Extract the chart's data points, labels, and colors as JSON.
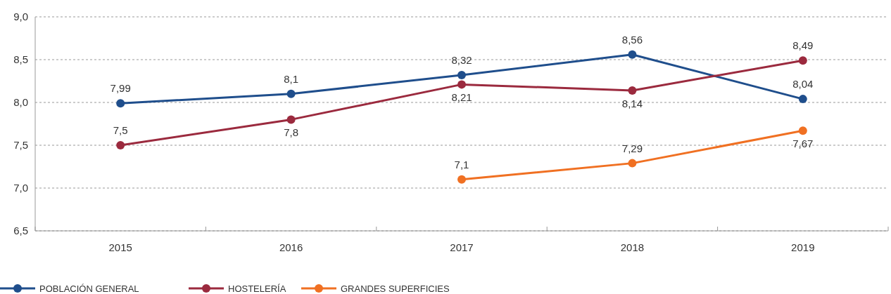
{
  "chart_data": {
    "type": "line",
    "categories": [
      "2015",
      "2016",
      "2017",
      "2018",
      "2019"
    ],
    "ylim": [
      6.5,
      9
    ],
    "yticks": [
      {
        "value": 6.5,
        "label": "6,5"
      },
      {
        "value": 7,
        "label": "7,0"
      },
      {
        "value": 7.5,
        "label": "7,5"
      },
      {
        "value": 8,
        "label": "8,0"
      },
      {
        "value": 8.5,
        "label": "8,5"
      },
      {
        "value": 9,
        "label": "9,0"
      }
    ],
    "grid": "y",
    "legend": "bottom",
    "marker": "circle",
    "line_style": "solid",
    "series": [
      {
        "name": "POBLACIÓN GENERAL",
        "color": "#1f4e8c",
        "values": [
          7.99,
          8.1,
          8.32,
          8.56,
          8.04
        ],
        "value_labels": [
          "7,99",
          "8,1",
          "8,32",
          "8,56",
          "8,04"
        ]
      },
      {
        "name": "HOSTELERÍA",
        "color": "#9b2a3e",
        "values": [
          7.5,
          7.8,
          8.21,
          8.14,
          8.49
        ],
        "value_labels": [
          "7,5",
          "7,8",
          "8,21",
          "8,14",
          "8,49"
        ]
      },
      {
        "name": "GRANDES SUPERFICIES",
        "color": "#f07022",
        "values": [
          null,
          null,
          7.1,
          7.29,
          7.67
        ],
        "value_labels": [
          null,
          null,
          "7,1",
          "7,29",
          "7,67"
        ]
      }
    ]
  }
}
